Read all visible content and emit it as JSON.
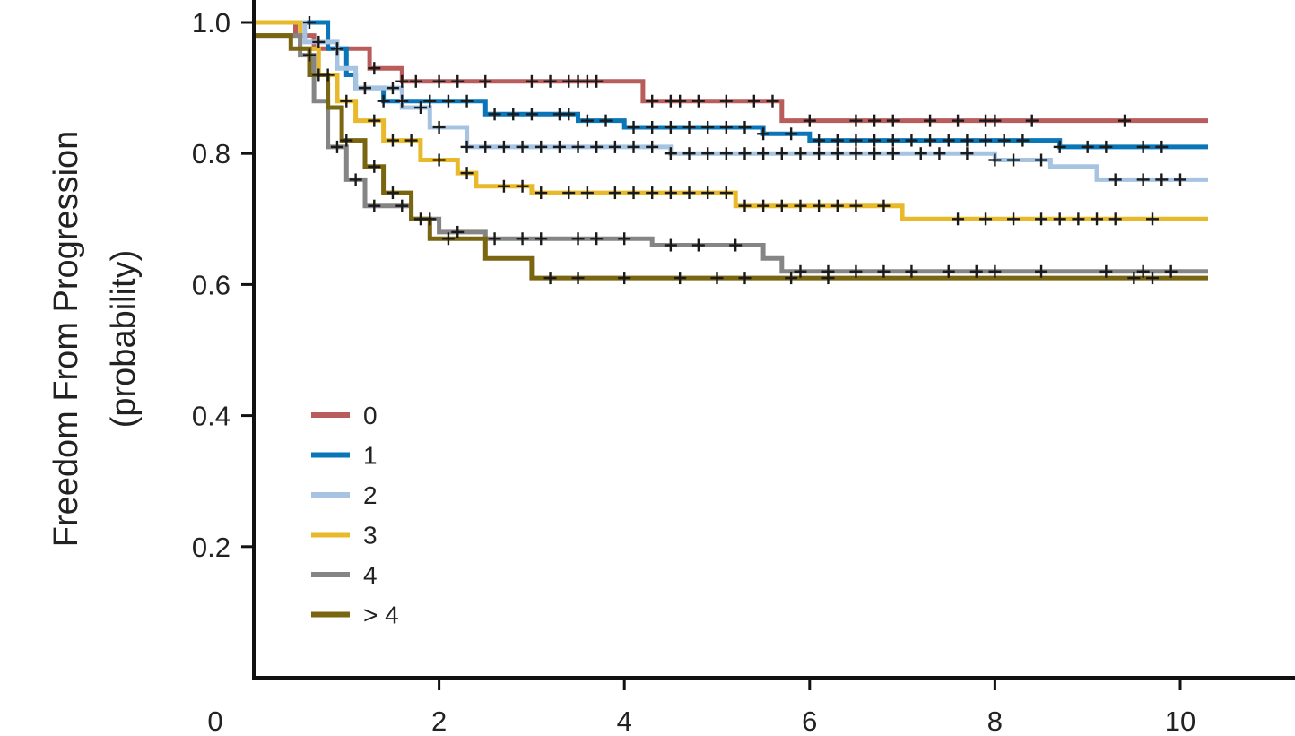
{
  "chart_data": {
    "type": "line",
    "subtype": "kaplan-meier",
    "title": "",
    "xlabel": "",
    "ylabel": [
      "Freedom From Progression",
      "(probability)"
    ],
    "xlim": [
      0,
      11.5
    ],
    "ylim": [
      0,
      1.0
    ],
    "x_ticks": [
      0,
      2,
      4,
      6,
      8,
      10
    ],
    "x_tick_labels": [
      "0",
      "2",
      "4",
      "6",
      "8",
      "10"
    ],
    "y_ticks": [
      0.2,
      0.4,
      0.6,
      0.8,
      1.0
    ],
    "y_tick_labels": [
      "0.2",
      "0.4",
      "0.6",
      "0.8",
      "1.0"
    ],
    "grid": false,
    "legend_position": "lower-left",
    "series": [
      {
        "name": "0",
        "color": "#b85c5c",
        "steps": [
          [
            0,
            1.0
          ],
          [
            0.45,
            0.98
          ],
          [
            0.65,
            0.96
          ],
          [
            1.25,
            0.93
          ],
          [
            1.6,
            0.91
          ],
          [
            4.2,
            0.88
          ],
          [
            5.7,
            0.85
          ],
          [
            10.3,
            0.85
          ]
        ],
        "censor_x": [
          0.9,
          1.3,
          1.6,
          1.75,
          2.0,
          2.2,
          2.5,
          3.0,
          3.2,
          3.4,
          3.5,
          3.6,
          3.7,
          4.3,
          4.5,
          4.6,
          4.8,
          5.1,
          5.4,
          5.6,
          6.0,
          6.5,
          6.7,
          6.9,
          7.3,
          7.6,
          7.9,
          8.0,
          8.4,
          9.4
        ]
      },
      {
        "name": "1",
        "color": "#0a76b8",
        "steps": [
          [
            0,
            1.0
          ],
          [
            0.8,
            0.96
          ],
          [
            1.0,
            0.92
          ],
          [
            1.1,
            0.9
          ],
          [
            1.4,
            0.88
          ],
          [
            2.5,
            0.86
          ],
          [
            3.5,
            0.85
          ],
          [
            4.0,
            0.84
          ],
          [
            5.5,
            0.83
          ],
          [
            6.0,
            0.82
          ],
          [
            8.7,
            0.81
          ],
          [
            10.3,
            0.81
          ]
        ],
        "censor_x": [
          0.6,
          0.9,
          1.2,
          1.4,
          1.6,
          1.9,
          2.1,
          2.3,
          2.6,
          2.8,
          3.0,
          3.3,
          3.4,
          3.6,
          3.8,
          4.1,
          4.3,
          4.5,
          4.7,
          4.9,
          5.1,
          5.3,
          5.5,
          5.8,
          6.1,
          6.3,
          6.5,
          6.7,
          6.9,
          7.1,
          7.3,
          7.5,
          7.7,
          7.9,
          8.1,
          8.3,
          8.7,
          9.0,
          9.2,
          9.6,
          9.8
        ]
      },
      {
        "name": "2",
        "color": "#a6c4e2",
        "steps": [
          [
            0,
            1.0
          ],
          [
            0.55,
            0.97
          ],
          [
            0.9,
            0.93
          ],
          [
            1.1,
            0.9
          ],
          [
            1.6,
            0.87
          ],
          [
            1.9,
            0.84
          ],
          [
            2.3,
            0.81
          ],
          [
            4.5,
            0.8
          ],
          [
            6.8,
            0.8
          ],
          [
            7.1,
            0.8
          ],
          [
            7.9,
            0.8
          ],
          [
            8.0,
            0.79
          ],
          [
            8.6,
            0.78
          ],
          [
            9.1,
            0.76
          ],
          [
            10.3,
            0.76
          ]
        ],
        "censor_x": [
          0.7,
          1.2,
          1.5,
          1.8,
          2.0,
          2.3,
          2.5,
          2.7,
          2.9,
          3.1,
          3.3,
          3.5,
          3.7,
          3.9,
          4.1,
          4.3,
          4.5,
          4.7,
          4.9,
          5.1,
          5.3,
          5.5,
          5.7,
          5.9,
          6.1,
          6.3,
          6.5,
          6.7,
          6.9,
          7.2,
          7.4,
          7.7,
          8.0,
          8.2,
          8.5,
          9.3,
          9.6,
          9.8,
          10.0
        ]
      },
      {
        "name": "3",
        "color": "#e8b92a",
        "steps": [
          [
            0,
            1.0
          ],
          [
            0.5,
            0.96
          ],
          [
            0.7,
            0.92
          ],
          [
            0.9,
            0.88
          ],
          [
            1.1,
            0.85
          ],
          [
            1.4,
            0.82
          ],
          [
            1.8,
            0.79
          ],
          [
            2.2,
            0.77
          ],
          [
            2.4,
            0.75
          ],
          [
            3.0,
            0.74
          ],
          [
            5.2,
            0.72
          ],
          [
            7.0,
            0.7
          ],
          [
            10.3,
            0.7
          ]
        ],
        "censor_x": [
          0.8,
          1.0,
          1.3,
          1.5,
          1.7,
          2.0,
          2.3,
          2.7,
          2.9,
          3.1,
          3.4,
          3.6,
          3.9,
          4.1,
          4.3,
          4.5,
          4.7,
          4.9,
          5.1,
          5.3,
          5.5,
          5.7,
          5.9,
          6.1,
          6.3,
          6.5,
          6.8,
          7.6,
          7.9,
          8.2,
          8.5,
          8.7,
          8.9,
          9.1,
          9.3,
          9.7
        ]
      },
      {
        "name": "4",
        "color": "#858585",
        "steps": [
          [
            0,
            0.98
          ],
          [
            0.5,
            0.95
          ],
          [
            0.65,
            0.88
          ],
          [
            0.8,
            0.81
          ],
          [
            1.0,
            0.76
          ],
          [
            1.2,
            0.72
          ],
          [
            1.7,
            0.7
          ],
          [
            2.0,
            0.68
          ],
          [
            2.5,
            0.67
          ],
          [
            4.3,
            0.66
          ],
          [
            5.5,
            0.64
          ],
          [
            5.7,
            0.62
          ],
          [
            10.3,
            0.62
          ]
        ],
        "censor_x": [
          0.6,
          0.9,
          1.1,
          1.3,
          1.6,
          1.9,
          2.2,
          2.6,
          2.9,
          3.1,
          3.5,
          3.7,
          4.0,
          4.5,
          4.8,
          5.2,
          5.9,
          6.2,
          6.5,
          6.8,
          7.1,
          7.5,
          7.8,
          8.0,
          8.5,
          9.2,
          9.6,
          9.9
        ]
      },
      {
        "name": "> 4",
        "color": "#7a6510",
        "steps": [
          [
            0,
            0.98
          ],
          [
            0.4,
            0.96
          ],
          [
            0.6,
            0.92
          ],
          [
            0.8,
            0.87
          ],
          [
            0.95,
            0.82
          ],
          [
            1.2,
            0.78
          ],
          [
            1.4,
            0.74
          ],
          [
            1.7,
            0.7
          ],
          [
            1.9,
            0.67
          ],
          [
            2.5,
            0.64
          ],
          [
            3.0,
            0.61
          ],
          [
            10.3,
            0.61
          ]
        ],
        "censor_x": [
          0.7,
          1.0,
          1.3,
          1.5,
          1.8,
          2.1,
          3.2,
          3.5,
          4.0,
          4.6,
          5.0,
          5.3,
          5.8,
          6.2,
          9.5,
          9.7
        ]
      }
    ]
  }
}
